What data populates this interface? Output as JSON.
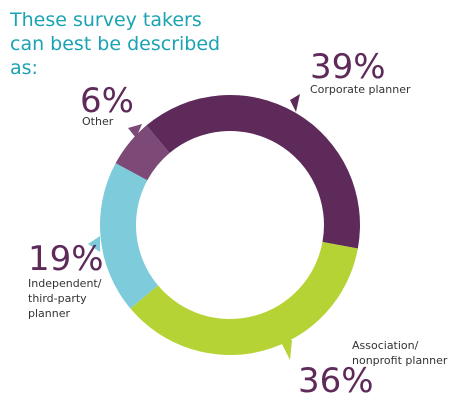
{
  "chart_data": {
    "type": "pie",
    "title": "These survey takers can best be described as:",
    "categories": [
      "Corporate planner",
      "Association/ nonprofit planner",
      "Independent/ third-party planner",
      "Other"
    ],
    "values": [
      39,
      36,
      19,
      6
    ],
    "value_labels": [
      "39%",
      "36%",
      "19%",
      "6%"
    ],
    "colors": [
      "#5e2a5a",
      "#b5d334",
      "#7ecbdc",
      "#7d4a78"
    ]
  }
}
